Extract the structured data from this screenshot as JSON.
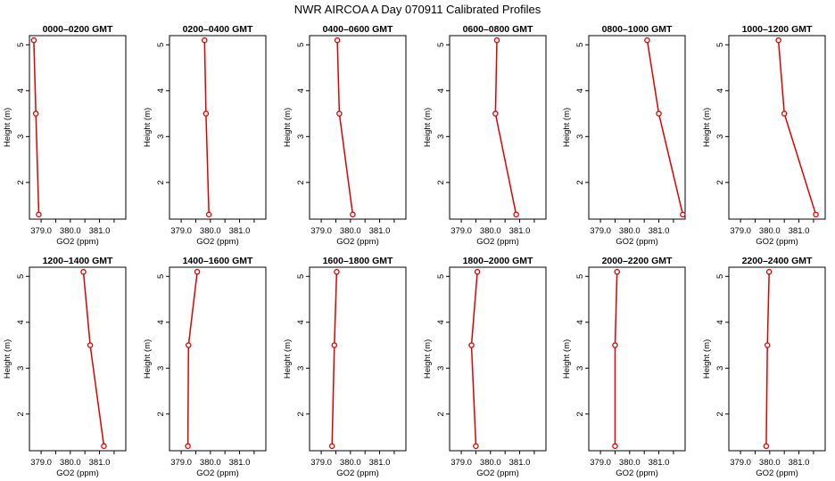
{
  "title": "NWR AIRCOA A  Day 070911  Calibrated Profiles",
  "colors": {
    "profile": "#e00000",
    "axis": "#000000",
    "background": "#ffffff"
  },
  "chart_data": [
    {
      "type": "line",
      "title": "0000–0200 GMT",
      "xlabel": "GO2 (ppm)",
      "ylabel": "Height (m)",
      "xlim": [
        378.6,
        381.9
      ],
      "ylim": [
        1.2,
        5.2
      ],
      "xticks": [
        "379.0",
        "380.0",
        "381.0"
      ],
      "yticks": [
        "2",
        "3",
        "4",
        "5"
      ],
      "points": [
        {
          "x": 378.75,
          "y": 5.1
        },
        {
          "x": 378.82,
          "y": 3.5
        },
        {
          "x": 378.92,
          "y": 1.3
        }
      ]
    },
    {
      "type": "line",
      "title": "0200–0400 GMT",
      "xlabel": "GO2 (ppm)",
      "ylabel": "Height (m)",
      "xlim": [
        378.6,
        381.9
      ],
      "ylim": [
        1.2,
        5.2
      ],
      "xticks": [
        "379.0",
        "380.0",
        "381.0"
      ],
      "yticks": [
        "2",
        "3",
        "4",
        "5"
      ],
      "points": [
        {
          "x": 379.8,
          "y": 5.1
        },
        {
          "x": 379.85,
          "y": 3.5
        },
        {
          "x": 379.95,
          "y": 1.3
        }
      ]
    },
    {
      "type": "line",
      "title": "0400–0600 GMT",
      "xlabel": "GO2 (ppm)",
      "ylabel": "Height (m)",
      "xlim": [
        378.6,
        381.9
      ],
      "ylim": [
        1.2,
        5.2
      ],
      "xticks": [
        "379.0",
        "380.0",
        "381.0"
      ],
      "yticks": [
        "2",
        "3",
        "4",
        "5"
      ],
      "points": [
        {
          "x": 379.55,
          "y": 5.1
        },
        {
          "x": 379.62,
          "y": 3.5
        },
        {
          "x": 380.08,
          "y": 1.3
        }
      ]
    },
    {
      "type": "line",
      "title": "0600–0800 GMT",
      "xlabel": "GO2 (ppm)",
      "ylabel": "Height (m)",
      "xlim": [
        378.6,
        381.9
      ],
      "ylim": [
        1.2,
        5.2
      ],
      "xticks": [
        "379.0",
        "380.0",
        "381.0"
      ],
      "yticks": [
        "2",
        "3",
        "4",
        "5"
      ],
      "points": [
        {
          "x": 380.22,
          "y": 5.1
        },
        {
          "x": 380.17,
          "y": 3.5
        },
        {
          "x": 380.88,
          "y": 1.3
        }
      ]
    },
    {
      "type": "line",
      "title": "0800–1000 GMT",
      "xlabel": "GO2 (ppm)",
      "ylabel": "Height (m)",
      "xlim": [
        378.6,
        381.9
      ],
      "ylim": [
        1.2,
        5.2
      ],
      "xticks": [
        "379.0",
        "380.0",
        "381.0"
      ],
      "yticks": [
        "2",
        "3",
        "4",
        "5"
      ],
      "points": [
        {
          "x": 380.6,
          "y": 5.1
        },
        {
          "x": 381.0,
          "y": 3.5
        },
        {
          "x": 381.82,
          "y": 1.3
        }
      ]
    },
    {
      "type": "line",
      "title": "1000–1200 GMT",
      "xlabel": "GO2 (ppm)",
      "ylabel": "Height (m)",
      "xlim": [
        378.6,
        381.9
      ],
      "ylim": [
        1.2,
        5.2
      ],
      "xticks": [
        "379.0",
        "380.0",
        "381.0"
      ],
      "yticks": [
        "2",
        "3",
        "4",
        "5"
      ],
      "points": [
        {
          "x": 380.3,
          "y": 5.1
        },
        {
          "x": 380.5,
          "y": 3.5
        },
        {
          "x": 381.58,
          "y": 1.3
        }
      ]
    },
    {
      "type": "line",
      "title": "1200–1400 GMT",
      "xlabel": "GO2 (ppm)",
      "ylabel": "Height (m)",
      "xlim": [
        378.6,
        381.9
      ],
      "ylim": [
        1.2,
        5.2
      ],
      "xticks": [
        "379.0",
        "380.0",
        "381.0"
      ],
      "yticks": [
        "2",
        "3",
        "4",
        "5"
      ],
      "points": [
        {
          "x": 380.45,
          "y": 5.1
        },
        {
          "x": 380.68,
          "y": 3.5
        },
        {
          "x": 381.15,
          "y": 1.3
        }
      ]
    },
    {
      "type": "line",
      "title": "1400–1600 GMT",
      "xlabel": "GO2 (ppm)",
      "ylabel": "Height (m)",
      "xlim": [
        378.6,
        381.9
      ],
      "ylim": [
        1.2,
        5.2
      ],
      "xticks": [
        "379.0",
        "380.0",
        "381.0"
      ],
      "yticks": [
        "2",
        "3",
        "4",
        "5"
      ],
      "points": [
        {
          "x": 379.55,
          "y": 5.1
        },
        {
          "x": 379.25,
          "y": 3.5
        },
        {
          "x": 379.23,
          "y": 1.3
        }
      ]
    },
    {
      "type": "line",
      "title": "1600–1800 GMT",
      "xlabel": "GO2 (ppm)",
      "ylabel": "Height (m)",
      "xlim": [
        378.6,
        381.9
      ],
      "ylim": [
        1.2,
        5.2
      ],
      "xticks": [
        "379.0",
        "380.0",
        "381.0"
      ],
      "yticks": [
        "2",
        "3",
        "4",
        "5"
      ],
      "points": [
        {
          "x": 379.53,
          "y": 5.1
        },
        {
          "x": 379.45,
          "y": 3.5
        },
        {
          "x": 379.37,
          "y": 1.3
        }
      ]
    },
    {
      "type": "line",
      "title": "1800–2000 GMT",
      "xlabel": "GO2 (ppm)",
      "ylabel": "Height (m)",
      "xlim": [
        378.6,
        381.9
      ],
      "ylim": [
        1.2,
        5.2
      ],
      "xticks": [
        "379.0",
        "380.0",
        "381.0"
      ],
      "yticks": [
        "2",
        "3",
        "4",
        "5"
      ],
      "points": [
        {
          "x": 379.55,
          "y": 5.1
        },
        {
          "x": 379.35,
          "y": 3.5
        },
        {
          "x": 379.5,
          "y": 1.3
        }
      ]
    },
    {
      "type": "line",
      "title": "2000–2200 GMT",
      "xlabel": "GO2 (ppm)",
      "ylabel": "Height (m)",
      "xlim": [
        378.6,
        381.9
      ],
      "ylim": [
        1.2,
        5.2
      ],
      "xticks": [
        "379.0",
        "380.0",
        "381.0"
      ],
      "yticks": [
        "2",
        "3",
        "4",
        "5"
      ],
      "points": [
        {
          "x": 379.57,
          "y": 5.1
        },
        {
          "x": 379.5,
          "y": 3.5
        },
        {
          "x": 379.5,
          "y": 1.3
        }
      ]
    },
    {
      "type": "line",
      "title": "2200–2400 GMT",
      "xlabel": "GO2 (ppm)",
      "ylabel": "Height (m)",
      "xlim": [
        378.6,
        381.9
      ],
      "ylim": [
        1.2,
        5.2
      ],
      "xticks": [
        "379.0",
        "380.0",
        "381.0"
      ],
      "yticks": [
        "2",
        "3",
        "4",
        "5"
      ],
      "points": [
        {
          "x": 379.98,
          "y": 5.1
        },
        {
          "x": 379.92,
          "y": 3.5
        },
        {
          "x": 379.88,
          "y": 1.3
        }
      ]
    }
  ]
}
